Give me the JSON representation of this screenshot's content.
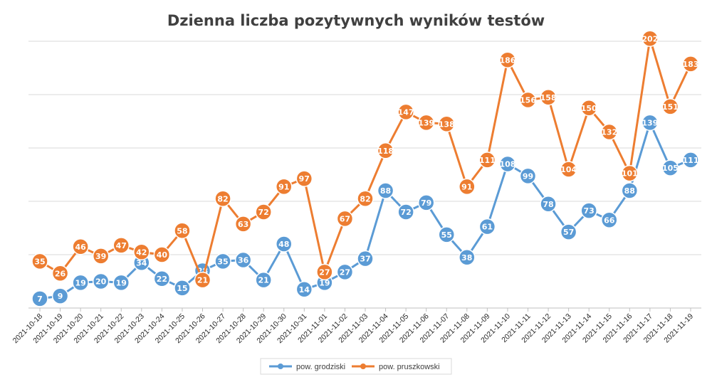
{
  "chart_data": {
    "type": "line",
    "title": "Dzienna liczba pozytywnych wyników testów",
    "categories": [
      "2021-10-18",
      "2021-10-19",
      "2021-10-20",
      "2021-10-21",
      "2021-10-22",
      "2021-10-23",
      "2021-10-24",
      "2021-10-25",
      "2021-10-26",
      "2021-10-27",
      "2021-10-28",
      "2021-10-29",
      "2021-10-30",
      "2021-10-31",
      "2021-11-01",
      "2021-11-02",
      "2021-11-03",
      "2021-11-04",
      "2021-11-05",
      "2021-11-06",
      "2021-11-07",
      "2021-11-08",
      "2021-11-09",
      "2021-11-10",
      "2021-11-11",
      "2021-11-12",
      "2021-11-13",
      "2021-11-14",
      "2021-11-15",
      "2021-11-16",
      "2021-11-17",
      "2021-11-18",
      "2021-11-19"
    ],
    "series": [
      {
        "name": "pow. grodziski",
        "color": "#5b9bd5",
        "values": [
          7,
          9,
          19,
          20,
          19,
          34,
          22,
          15,
          28,
          35,
          36,
          21,
          48,
          14,
          19,
          27,
          37,
          88,
          72,
          79,
          55,
          38,
          61,
          108,
          99,
          78,
          57,
          73,
          66,
          88,
          139,
          105,
          111
        ]
      },
      {
        "name": "pow. pruszkowski",
        "color": "#ed7d31",
        "values": [
          35,
          26,
          46,
          39,
          47,
          42,
          40,
          58,
          21,
          82,
          63,
          72,
          91,
          97,
          27,
          67,
          82,
          118,
          147,
          139,
          138,
          91,
          111,
          186,
          156,
          158,
          104,
          150,
          132,
          101,
          202,
          151,
          183
        ]
      }
    ],
    "ylim": [
      0,
      200
    ],
    "yaxis_labels_shown": false,
    "grid": true,
    "legend_position": "bottom",
    "xlabel": "",
    "ylabel": ""
  }
}
